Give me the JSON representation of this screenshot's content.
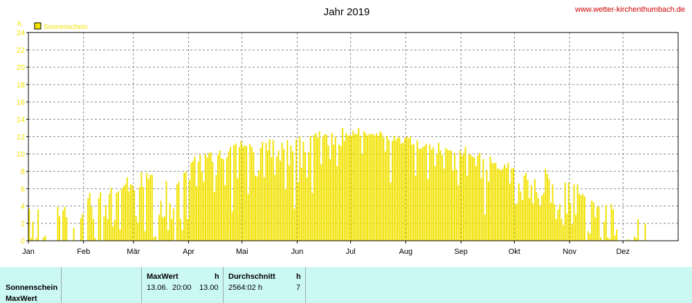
{
  "source_link": "www.wetter-kirchenthumbach.de",
  "colors": {
    "bar": "#f2e200",
    "bar_edge": "#d8c800",
    "axis_text": "#f2e200",
    "link": "#cc0000",
    "grid": "#888888",
    "table_bg": "#ccf8f4"
  },
  "chart_data": {
    "type": "bar",
    "title": "Jahr 2019",
    "ylabel": "h",
    "legend": [
      "Sonnenschein"
    ],
    "legend_position": "top-left",
    "grid": true,
    "ylim": [
      0,
      24
    ],
    "yticks": [
      0,
      2,
      4,
      6,
      8,
      10,
      12,
      14,
      16,
      18,
      20,
      22,
      24
    ],
    "months": [
      "Jan",
      "Feb",
      "Mär",
      "Apr",
      "Mai",
      "Jun",
      "Jul",
      "Aug",
      "Sep",
      "Okt",
      "Nov",
      "Dez"
    ],
    "month_start_days": [
      1,
      32,
      60,
      91,
      121,
      152,
      182,
      213,
      244,
      274,
      305,
      335
    ],
    "days_in_year": 365,
    "series": [
      {
        "name": "Sonnenschein",
        "values": [
          3.7,
          0.3,
          2.2,
          0,
          0.3,
          3.6,
          0,
          0,
          0.4,
          0.6,
          0,
          0,
          0,
          0,
          0,
          0,
          3.9,
          2.8,
          0,
          3.5,
          3.9,
          2.7,
          0,
          0,
          0,
          1.5,
          0,
          0,
          0,
          2.6,
          3.1,
          0,
          0,
          4.9,
          5.5,
          3.9,
          2.5,
          0.3,
          0,
          4.9,
          5.6,
          0,
          2.8,
          4.1,
          2.5,
          5.4,
          6.1,
          1.7,
          2.4,
          5.5,
          5.7,
          1.3,
          6.0,
          6.3,
          6.5,
          7.3,
          5.7,
          6.5,
          6.4,
          5.8,
          2.9,
          2.1,
          6.2,
          7.9,
          6.2,
          1.1,
          7.8,
          7.1,
          7.6,
          7.6,
          0.4,
          0.5,
          0,
          3.0,
          4.6,
          2.7,
          2.8,
          6.9,
          1.2,
          4.3,
          2.5,
          3.7,
          0,
          6.5,
          6.8,
          2.5,
          1.2,
          7.8,
          8.0,
          2.5,
          7.0,
          9.0,
          9.2,
          9.7,
          6.3,
          9.1,
          9.9,
          8.0,
          6.8,
          10.0,
          9.6,
          10.1,
          10.2,
          9.1,
          5.6,
          7.6,
          9.9,
          10.4,
          9.5,
          9.4,
          6.4,
          9.6,
          10.3,
          10.8,
          3.4,
          11.0,
          11.2,
          7.2,
          10.8,
          11.5,
          10.8,
          11.0,
          10.9,
          5.4,
          11.1,
          10.8,
          10.2,
          7.5,
          7.4,
          8.1,
          10.7,
          11.4,
          7.3,
          11.3,
          10.4,
          11.7,
          9.6,
          11.6,
          7.6,
          9.7,
          10.4,
          9.2,
          11.3,
          10.6,
          5.9,
          11.6,
          8.7,
          11.0,
          10.3,
          3.7,
          11.7,
          6.7,
          12.0,
          8.4,
          11.4,
          10.2,
          7.3,
          10.2,
          12.1,
          5.5,
          12.2,
          12.4,
          11.9,
          12.6,
          8.8,
          12.0,
          12.3,
          12.2,
          11.0,
          9.4,
          12.4,
          11.1,
          12.0,
          8.6,
          11.1,
          10.9,
          13.0,
          11.5,
          12.4,
          12.1,
          12.2,
          12.1,
          12.7,
          12.3,
          12.3,
          13.0,
          12.1,
          10.0,
          12.6,
          12.4,
          12.1,
          12.3,
          12.3,
          12.3,
          12.1,
          12.4,
          12.1,
          12.6,
          12.4,
          11.9,
          10.3,
          12.1,
          11.6,
          6.7,
          11.5,
          12.1,
          11.6,
          11.9,
          11.9,
          11.2,
          11.3,
          11.8,
          12.0,
          11.8,
          12.0,
          11.1,
          11.1,
          7.5,
          11.6,
          10.6,
          10.6,
          10.8,
          10.9,
          11.2,
          7.1,
          11.1,
          10.5,
          10.8,
          8.6,
          10.0,
          11.3,
          10.4,
          9.9,
          8.3,
          10.7,
          10.5,
          10.4,
          10.4,
          8.1,
          10.1,
          8.2,
          6.4,
          10.4,
          9.8,
          10.1,
          10.8,
          7.5,
          10.0,
          9.9,
          9.7,
          9.6,
          8.6,
          9.8,
          10.1,
          7.2,
          9.4,
          3.0,
          8.2,
          6.8,
          9.7,
          9.0,
          8.9,
          9.0,
          8.3,
          8.3,
          8.1,
          8.3,
          8.8,
          8.4,
          9.0,
          6.6,
          8.3,
          8.4,
          4.2,
          4.3,
          6.6,
          5.7,
          4.7,
          7.5,
          7.8,
          7.0,
          4.9,
          6.4,
          4.3,
          7.1,
          5.6,
          4.9,
          4.0,
          5.2,
          5.5,
          8.3,
          7.7,
          7.1,
          4.4,
          6.5,
          4.2,
          2.5,
          3.6,
          4.2,
          2.5,
          1.8,
          6.7,
          3.1,
          6.7,
          4.3,
          1.9,
          6.5,
          3.0,
          6.5,
          5.4,
          5.2,
          5.4,
          5.1,
          0,
          1.1,
          0.8,
          4.6,
          4.4,
          2.7,
          3.9,
          3.9,
          0.4,
          0,
          2.2,
          4.1,
          0.4,
          0.2,
          4.2,
          3.6,
          0.6,
          1.3,
          0,
          0,
          0,
          0,
          0,
          0.2,
          0,
          0,
          0,
          0.5,
          0.3,
          2.5,
          0,
          0,
          0,
          2.0,
          0,
          0,
          0,
          0,
          0,
          0,
          0,
          0,
          0,
          0,
          0,
          0,
          0,
          0,
          0,
          0,
          0,
          0,
          0,
          0,
          0,
          0,
          0,
          0,
          0
        ]
      }
    ]
  },
  "table": {
    "row_labels": [
      "Sonnenschein",
      "MaxWert"
    ],
    "headers": [
      "MaxWert",
      "h",
      "Durchschnitt",
      "h"
    ],
    "values": {
      "max_date": "13.06.",
      "max_time": "20:00",
      "max_value": "13.00",
      "avg_total": "2564:02 h",
      "avg_value": "7"
    }
  }
}
